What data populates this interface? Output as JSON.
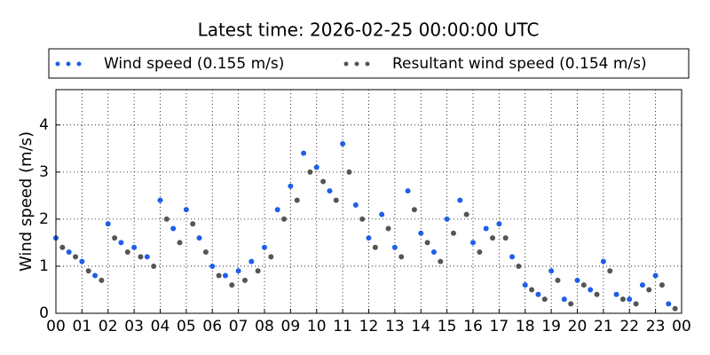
{
  "chart_data": {
    "type": "scatter",
    "title": "Latest time: 2026-02-25 00:00:00 UTC",
    "y_label": "Wind speed (m/s)",
    "xlim": [
      0,
      24
    ],
    "ylim": [
      0,
      4.75
    ],
    "xticks": [
      {
        "value": 0,
        "label": "00"
      },
      {
        "value": 1,
        "label": "01"
      },
      {
        "value": 2,
        "label": "02"
      },
      {
        "value": 3,
        "label": "03"
      },
      {
        "value": 4,
        "label": "04"
      },
      {
        "value": 5,
        "label": "05"
      },
      {
        "value": 6,
        "label": "06"
      },
      {
        "value": 7,
        "label": "07"
      },
      {
        "value": 8,
        "label": "08"
      },
      {
        "value": 9,
        "label": "09"
      },
      {
        "value": 10,
        "label": "10"
      },
      {
        "value": 11,
        "label": "11"
      },
      {
        "value": 12,
        "label": "12"
      },
      {
        "value": 13,
        "label": "13"
      },
      {
        "value": 14,
        "label": "14"
      },
      {
        "value": 15,
        "label": "15"
      },
      {
        "value": 16,
        "label": "16"
      },
      {
        "value": 17,
        "label": "17"
      },
      {
        "value": 18,
        "label": "18"
      },
      {
        "value": 19,
        "label": "19"
      },
      {
        "value": 20,
        "label": "20"
      },
      {
        "value": 21,
        "label": "21"
      },
      {
        "value": 22,
        "label": "22"
      },
      {
        "value": 23,
        "label": "23"
      },
      {
        "value": 24,
        "label": "00"
      }
    ],
    "yticks": [
      0,
      1,
      2,
      3,
      4
    ],
    "grid": true,
    "legend": "top",
    "series": [
      {
        "name": "Wind speed (0.155 m/s)",
        "color": "#1f5fe8",
        "x": [
          0,
          0.5,
          1,
          1.5,
          2,
          2.5,
          3,
          3.5,
          4,
          4.5,
          5,
          5.5,
          6,
          6.5,
          7,
          7.5,
          8,
          8.5,
          9,
          9.5,
          10,
          10.5,
          11,
          11.5,
          12,
          12.5,
          13,
          13.5,
          14,
          14.5,
          15,
          15.5,
          16,
          16.5,
          17,
          17.5,
          18,
          18.5,
          19,
          19.5,
          20,
          20.5,
          21,
          21.5,
          22,
          22.5,
          23,
          23.5
        ],
        "values": [
          1.6,
          1.3,
          1.1,
          0.8,
          1.9,
          1.5,
          1.4,
          1.2,
          2.4,
          1.8,
          2.2,
          1.6,
          1.0,
          0.8,
          0.9,
          1.1,
          1.4,
          2.2,
          2.7,
          3.4,
          3.1,
          2.6,
          3.6,
          2.3,
          1.6,
          2.1,
          1.4,
          2.6,
          1.7,
          1.3,
          2.0,
          2.4,
          1.5,
          1.8,
          1.9,
          1.2,
          0.6,
          0.4,
          0.9,
          0.3,
          0.7,
          0.5,
          1.1,
          0.4,
          0.3,
          0.6,
          0.8,
          0.2
        ]
      },
      {
        "name": "Resultant wind speed (0.154 m/s)",
        "color": "#555555",
        "x": [
          0.25,
          0.75,
          1.25,
          1.75,
          2.25,
          2.75,
          3.25,
          3.75,
          4.25,
          4.75,
          5.25,
          5.75,
          6.25,
          6.75,
          7.25,
          7.75,
          8.25,
          8.75,
          9.25,
          9.75,
          10.25,
          10.75,
          11.25,
          11.75,
          12.25,
          12.75,
          13.25,
          13.75,
          14.25,
          14.75,
          15.25,
          15.75,
          16.25,
          16.75,
          17.25,
          17.75,
          18.25,
          18.75,
          19.25,
          19.75,
          20.25,
          20.75,
          21.25,
          21.75,
          22.25,
          22.75,
          23.25,
          23.75
        ],
        "values": [
          1.4,
          1.2,
          0.9,
          0.7,
          1.6,
          1.3,
          1.2,
          1.0,
          2.0,
          1.5,
          1.9,
          1.3,
          0.8,
          0.6,
          0.7,
          0.9,
          1.2,
          2.0,
          2.4,
          3.0,
          2.8,
          2.4,
          3.0,
          2.0,
          1.4,
          1.8,
          1.2,
          2.2,
          1.5,
          1.1,
          1.7,
          2.1,
          1.3,
          1.6,
          1.6,
          1.0,
          0.5,
          0.3,
          0.7,
          0.2,
          0.6,
          0.4,
          0.9,
          0.3,
          0.2,
          0.5,
          0.6,
          0.1
        ]
      }
    ]
  }
}
